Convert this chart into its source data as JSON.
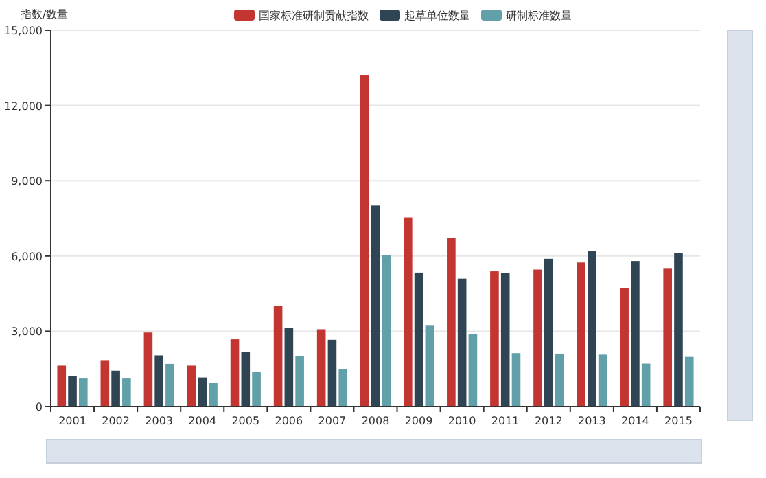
{
  "chart_data": {
    "type": "bar",
    "ylabel": "指数/数量",
    "categories": [
      "2001",
      "2002",
      "2003",
      "2004",
      "2005",
      "2006",
      "2007",
      "2008",
      "2009",
      "2010",
      "2011",
      "2012",
      "2013",
      "2014",
      "2015"
    ],
    "series": [
      {
        "name": "国家标准研制贡献指数",
        "color": "#c23531",
        "values": [
          1630,
          1850,
          2950,
          1630,
          2680,
          4020,
          3080,
          13220,
          7540,
          6730,
          5390,
          5460,
          5740,
          4730,
          5520
        ]
      },
      {
        "name": "起草单位数量",
        "color": "#2f4554",
        "values": [
          1210,
          1430,
          2040,
          1160,
          2180,
          3140,
          2660,
          8010,
          5340,
          5100,
          5320,
          5890,
          6200,
          5800,
          6120
        ]
      },
      {
        "name": "研制标准数量",
        "color": "#61a0a8",
        "values": [
          1120,
          1120,
          1700,
          950,
          1390,
          2000,
          1500,
          6030,
          3250,
          2880,
          2130,
          2110,
          2070,
          1710,
          1980
        ]
      }
    ],
    "ylim": [
      0,
      15000
    ],
    "yticks": [
      0,
      {
        "value": 3000,
        "label": "3,000"
      },
      {
        "value": 6000,
        "label": "6,000"
      },
      {
        "value": 9000,
        "label": "9,000"
      },
      {
        "value": 12000,
        "label": "12,000"
      },
      {
        "value": 15000,
        "label": "15,000"
      }
    ],
    "grid": "y",
    "legend": "top"
  }
}
